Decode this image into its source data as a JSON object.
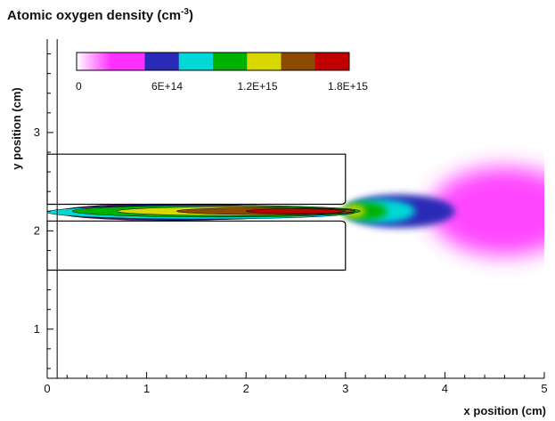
{
  "chart_data": {
    "type": "heatmap",
    "title_main": "Atomic oxygen density (cm",
    "title_sup": "-3",
    "title_end": ")",
    "xlabel": "x position (cm)",
    "ylabel": "y position (cm)",
    "xlim": [
      0,
      5
    ],
    "ylim": [
      0.5,
      3.95
    ],
    "x_ticks": [
      0,
      1,
      2,
      3,
      4,
      5
    ],
    "y_ticks": [
      1,
      2,
      3
    ],
    "grid": false,
    "colorbar": {
      "min": 0,
      "max": 1800000000000000.0,
      "colors": [
        "#ffffff",
        "#ff30ff",
        "#2a2ab8",
        "#00d8d8",
        "#00b000",
        "#d8d800",
        "#8c4a00",
        "#c00000"
      ],
      "tick_values": [
        0,
        600000000000000.0,
        1200000000000000.0,
        1800000000000000.0
      ],
      "tick_labels": [
        "0",
        "6E+14",
        "1.2E+15",
        "1.8E+15"
      ]
    },
    "geometry": {
      "upper_electrode": {
        "x": [
          0,
          3.0
        ],
        "y": [
          2.27,
          2.78
        ]
      },
      "lower_electrode": {
        "x": [
          0,
          3.0
        ],
        "y": [
          1.6,
          2.1
        ]
      },
      "left_boundary_x": 0.1
    },
    "contours": [
      {
        "level": "1.5E+15–1.8E+15",
        "color": "#c00000",
        "cx": 2.5,
        "cy": 2.2,
        "rx": 0.5,
        "ry": 0.025
      },
      {
        "level": "1.35E+15",
        "color": "#8c4a00",
        "cx": 2.2,
        "cy": 2.2,
        "rx": 0.9,
        "ry": 0.035
      },
      {
        "level": "1.05E+15",
        "color": "#d8d800",
        "cx": 1.9,
        "cy": 2.2,
        "rx": 1.2,
        "ry": 0.045
      },
      {
        "level": "9E+14",
        "color": "#00b000",
        "cx": 1.7,
        "cy": 2.2,
        "rx": 1.45,
        "ry": 0.06
      },
      {
        "level": "6E+14",
        "color": "#00d8d8",
        "cx": 1.55,
        "cy": 2.19,
        "rx": 1.55,
        "ry": 0.07
      },
      {
        "level": "4.5E+14",
        "color": "#2a2ab8",
        "cx": 1.35,
        "cy": 2.19,
        "rx": 1.25,
        "ry": 0.08
      },
      {
        "level": "2E+14",
        "color": "#ff30ff",
        "cx": 1.2,
        "cy": 2.19,
        "rx": 1.1,
        "ry": 0.085
      }
    ],
    "plume": [
      {
        "color": "#ff30ff",
        "cx": 4.6,
        "cy": 2.2,
        "rx": 0.75,
        "ry": 0.45
      },
      {
        "color": "#2a2ab8",
        "cx": 3.55,
        "cy": 2.2,
        "rx": 0.55,
        "ry": 0.17
      },
      {
        "color": "#00d8d8",
        "cx": 3.35,
        "cy": 2.2,
        "rx": 0.35,
        "ry": 0.12
      },
      {
        "color": "#00b000",
        "cx": 3.2,
        "cy": 2.2,
        "rx": 0.22,
        "ry": 0.09
      },
      {
        "color": "#d8d800",
        "cx": 3.08,
        "cy": 2.2,
        "rx": 0.12,
        "ry": 0.06
      }
    ]
  }
}
